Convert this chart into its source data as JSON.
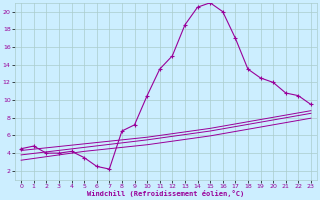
{
  "xlabel": "Windchill (Refroidissement éolien,°C)",
  "bg_color": "#cceeff",
  "line_color": "#990099",
  "grid_color": "#aacccc",
  "xlim": [
    -0.5,
    23.5
  ],
  "ylim": [
    1,
    21
  ],
  "xticks": [
    0,
    1,
    2,
    3,
    4,
    5,
    6,
    7,
    8,
    9,
    10,
    11,
    12,
    13,
    14,
    15,
    16,
    17,
    18,
    19,
    20,
    21,
    22,
    23
  ],
  "yticks": [
    2,
    4,
    6,
    8,
    10,
    12,
    14,
    16,
    18,
    20
  ],
  "main_y": [
    4.5,
    4.8,
    4.0,
    4.0,
    4.2,
    3.5,
    2.5,
    2.2,
    6.5,
    7.2,
    10.5,
    13.5,
    15.0,
    18.5,
    20.5,
    21.0,
    20.0,
    17.0,
    13.5,
    12.5,
    12.0,
    10.8,
    10.5,
    9.5
  ],
  "line1_y": [
    4.3,
    4.45,
    4.6,
    4.75,
    4.9,
    5.05,
    5.2,
    5.35,
    5.5,
    5.65,
    5.8,
    6.0,
    6.2,
    6.4,
    6.6,
    6.8,
    7.05,
    7.3,
    7.55,
    7.8,
    8.05,
    8.3,
    8.55,
    8.8
  ],
  "line2_y": [
    3.8,
    3.97,
    4.14,
    4.31,
    4.48,
    4.65,
    4.82,
    4.99,
    5.16,
    5.33,
    5.5,
    5.7,
    5.9,
    6.1,
    6.3,
    6.5,
    6.75,
    7.0,
    7.25,
    7.5,
    7.75,
    8.0,
    8.25,
    8.5
  ],
  "line3_y": [
    3.2,
    3.4,
    3.6,
    3.8,
    4.0,
    4.2,
    4.35,
    4.5,
    4.65,
    4.8,
    4.95,
    5.15,
    5.35,
    5.55,
    5.75,
    5.95,
    6.2,
    6.45,
    6.7,
    6.95,
    7.2,
    7.45,
    7.7,
    7.95
  ]
}
